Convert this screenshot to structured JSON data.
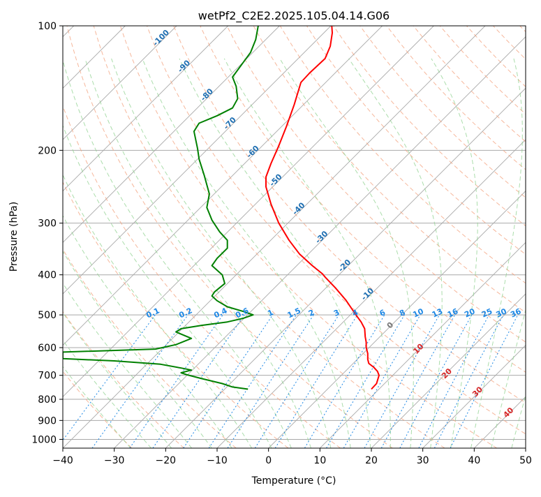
{
  "chart_data": {
    "type": "line",
    "title": "wetPf2_C2E2.2025.105.04.14.G06",
    "xlabel": "Temperature (°C)",
    "ylabel": "Pressure (hPa)",
    "xlim": [
      -40,
      50
    ],
    "ylim": [
      1050,
      100
    ],
    "y_scale": "log",
    "x_ticks": [
      -40,
      -30,
      -20,
      -10,
      0,
      10,
      20,
      30,
      40,
      50
    ],
    "x_tick_labels": [
      "−40",
      "−30",
      "−20",
      "−10",
      "0",
      "10",
      "20",
      "30",
      "40",
      "50"
    ],
    "y_ticks": [
      100,
      200,
      300,
      400,
      500,
      600,
      700,
      800,
      900,
      1000
    ],
    "y_tick_labels": [
      "100",
      "200",
      "300",
      "400",
      "500",
      "600",
      "700",
      "800",
      "900",
      "1000"
    ],
    "grid": true,
    "series": [
      {
        "color": "#ff0000",
        "points": [
          [
            20,
            756
          ],
          [
            21,
            733
          ],
          [
            21.5,
            700
          ],
          [
            21.2,
            685
          ],
          [
            20.5,
            670
          ],
          [
            19.5,
            655
          ],
          [
            19.3,
            640
          ],
          [
            19.3,
            620
          ],
          [
            19,
            600
          ],
          [
            19,
            582
          ],
          [
            18.8,
            565
          ],
          [
            18.7,
            540
          ],
          [
            18,
            520
          ],
          [
            17,
            500
          ],
          [
            15,
            460
          ],
          [
            13,
            430
          ],
          [
            11,
            405
          ],
          [
            10.5,
            398
          ],
          [
            8.5,
            380
          ],
          [
            6,
            356
          ],
          [
            4,
            330
          ],
          [
            2,
            300
          ],
          [
            0.5,
            270
          ],
          [
            -0.5,
            245
          ],
          [
            -0.5,
            232
          ],
          [
            0.5,
            215
          ],
          [
            2,
            195
          ],
          [
            3.5,
            175
          ],
          [
            5,
            155
          ],
          [
            6.3,
            137
          ],
          [
            8,
            130
          ],
          [
            11,
            120
          ],
          [
            12,
            112
          ],
          [
            12.4,
            104
          ],
          [
            12.3,
            100
          ]
        ]
      },
      {
        "color": "#008000",
        "points": [
          [
            -4,
            756
          ],
          [
            -7,
            747
          ],
          [
            -9,
            733
          ],
          [
            -13,
            713
          ],
          [
            -16,
            697
          ],
          [
            -17,
            690
          ],
          [
            -15,
            680
          ],
          [
            -17,
            672
          ],
          [
            -21,
            658
          ],
          [
            -30,
            646
          ],
          [
            -40,
            638
          ],
          [
            -40,
            615
          ],
          [
            -22,
            605
          ],
          [
            -18,
            590
          ],
          [
            -15,
            570
          ],
          [
            -18,
            550
          ],
          [
            -17,
            540
          ],
          [
            -13,
            530
          ],
          [
            -8,
            520
          ],
          [
            -5,
            510
          ],
          [
            -3,
            500
          ],
          [
            -5,
            490
          ],
          [
            -8,
            478
          ],
          [
            -10,
            462
          ],
          [
            -11,
            450
          ],
          [
            -10.5,
            440
          ],
          [
            -8.5,
            420
          ],
          [
            -9,
            400
          ],
          [
            -11,
            380
          ],
          [
            -10,
            365
          ],
          [
            -8,
            345
          ],
          [
            -8,
            330
          ],
          [
            -9.5,
            315
          ],
          [
            -11,
            295
          ],
          [
            -12,
            275
          ],
          [
            -11.5,
            255
          ],
          [
            -12.5,
            230
          ],
          [
            -13.5,
            210
          ],
          [
            -13.8,
            198
          ],
          [
            -14.5,
            180
          ],
          [
            -13.5,
            172
          ],
          [
            -10,
            165
          ],
          [
            -7,
            158
          ],
          [
            -6,
            150
          ],
          [
            -6.3,
            140
          ],
          [
            -7,
            133
          ],
          [
            -5,
            123
          ],
          [
            -3.5,
            116
          ],
          [
            -2.5,
            108
          ],
          [
            -2,
            100
          ]
        ]
      }
    ],
    "dry_adiabat_labels": [
      "-100",
      "-90",
      "-80",
      "-70",
      "-60",
      "-50",
      "-40",
      "-30",
      "-20",
      "-10"
    ],
    "moist_adiabat_labels": [
      "0",
      "10",
      "20",
      "30",
      "40"
    ],
    "mixing_ratio_labels": [
      "0.1",
      "0.2",
      "0.4",
      "0.6",
      "1",
      "1.5",
      "2",
      "3",
      "4",
      "6",
      "8",
      "10",
      "13",
      "16",
      "20",
      "25",
      "30",
      "36"
    ]
  },
  "colors": {
    "temperature": "#ff0000",
    "dewpoint": "#008000",
    "isotherm": "#a9a9a9",
    "isobar": "#a9a9a9",
    "dry_adiabat": "#f4a582",
    "moist_adiabat": "#8fd18f",
    "mixing_ratio": "#1e88e5",
    "dry_label": "#1f6fb2",
    "moist_label": "#d62728"
  }
}
